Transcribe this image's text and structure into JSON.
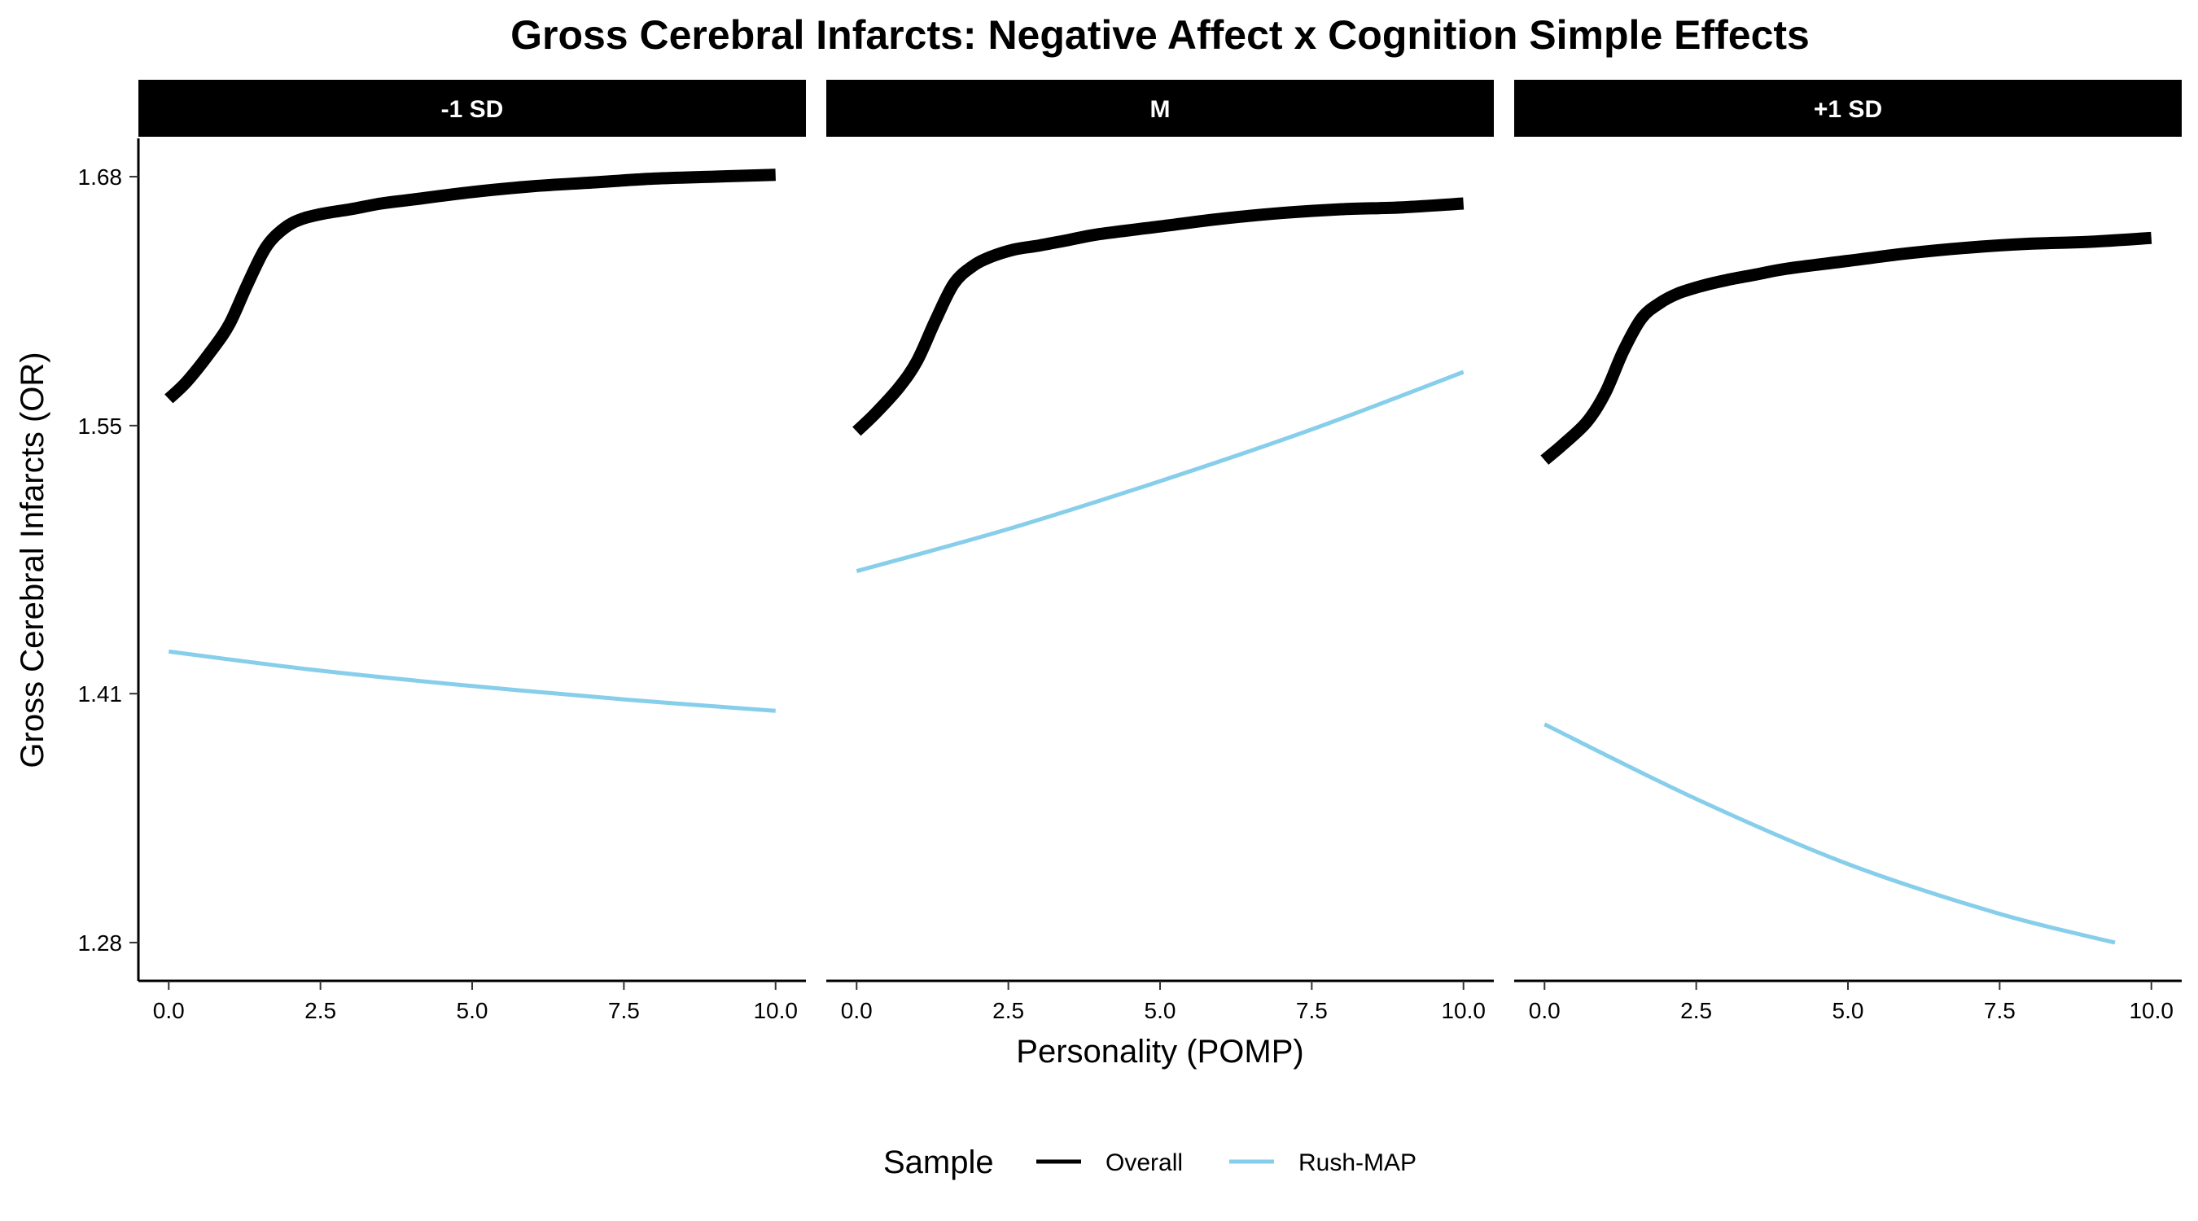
{
  "chart_data": {
    "type": "line",
    "title": "Gross Cerebral Infarcts: Negative Affect x Cognition Simple Effects",
    "xlabel": "Personality (POMP)",
    "ylabel": "Gross Cerebral Infarcts (OR)",
    "xlim": [
      -0.5,
      10.5
    ],
    "ylim": [
      1.26,
      1.7
    ],
    "x_ticks": [
      0,
      2.5,
      5,
      7.5,
      10
    ],
    "x_tick_labels": [
      "0.0",
      "2.5",
      "5.0",
      "7.5",
      "10.0"
    ],
    "y_ticks": [
      1.28,
      1.41,
      1.55,
      1.68
    ],
    "y_tick_labels": [
      "1.28",
      "1.41",
      "1.55",
      "1.68"
    ],
    "grid": false,
    "legend": {
      "title": "Sample",
      "position": "bottom",
      "entries": [
        {
          "label": "Overall",
          "color": "#000000"
        },
        {
          "label": "Rush-MAP",
          "color": "#87CEEB"
        }
      ]
    },
    "panels": [
      {
        "label": "-1 SD",
        "series": [
          {
            "name": "Overall",
            "color": "#000000",
            "x": [
              0,
              0.3,
              0.7,
              1.0,
              1.3,
              1.6,
              1.9,
              2.2,
              2.6,
              3.0,
              3.5,
              4.0,
              5.0,
              6.0,
              7.0,
              8.0,
              9.0,
              10.0
            ],
            "y": [
              1.564,
              1.573,
              1.589,
              1.603,
              1.624,
              1.643,
              1.653,
              1.658,
              1.661,
              1.663,
              1.666,
              1.668,
              1.672,
              1.675,
              1.677,
              1.679,
              1.68,
              1.681
            ]
          },
          {
            "name": "Rush-MAP",
            "color": "#87CEEB",
            "x": [
              0,
              2.5,
              5.0,
              7.5,
              10.0
            ],
            "y": [
              1.432,
              1.422,
              1.414,
              1.407,
              1.401
            ]
          }
        ]
      },
      {
        "label": "M",
        "series": [
          {
            "name": "Overall",
            "color": "#000000",
            "x": [
              0,
              0.3,
              0.7,
              1.0,
              1.3,
              1.6,
              1.9,
              2.2,
              2.6,
              3.0,
              3.5,
              4.0,
              5.0,
              6.0,
              7.0,
              8.0,
              9.0,
              10.0
            ],
            "y": [
              1.547,
              1.556,
              1.57,
              1.584,
              1.605,
              1.624,
              1.633,
              1.638,
              1.642,
              1.644,
              1.647,
              1.65,
              1.654,
              1.658,
              1.661,
              1.663,
              1.664,
              1.666
            ]
          },
          {
            "name": "Rush-MAP",
            "color": "#87CEEB",
            "x": [
              0,
              2.5,
              5.0,
              7.5,
              10.0
            ],
            "y": [
              1.474,
              1.496,
              1.521,
              1.548,
              1.578
            ]
          }
        ]
      },
      {
        "label": "+1 SD",
        "series": [
          {
            "name": "Overall",
            "color": "#000000",
            "x": [
              0,
              0.3,
              0.7,
              1.0,
              1.3,
              1.6,
              1.9,
              2.2,
              2.6,
              3.0,
              3.5,
              4.0,
              5.0,
              6.0,
              7.0,
              8.0,
              9.0,
              10.0
            ],
            "y": [
              1.532,
              1.54,
              1.552,
              1.567,
              1.589,
              1.606,
              1.614,
              1.619,
              1.623,
              1.626,
              1.629,
              1.632,
              1.636,
              1.64,
              1.643,
              1.645,
              1.646,
              1.648
            ]
          },
          {
            "name": "Rush-MAP",
            "color": "#87CEEB",
            "x": [
              0,
              2.5,
              5.0,
              7.5,
              9.4
            ],
            "y": [
              1.394,
              1.355,
              1.321,
              1.295,
              1.28
            ]
          }
        ]
      }
    ]
  }
}
